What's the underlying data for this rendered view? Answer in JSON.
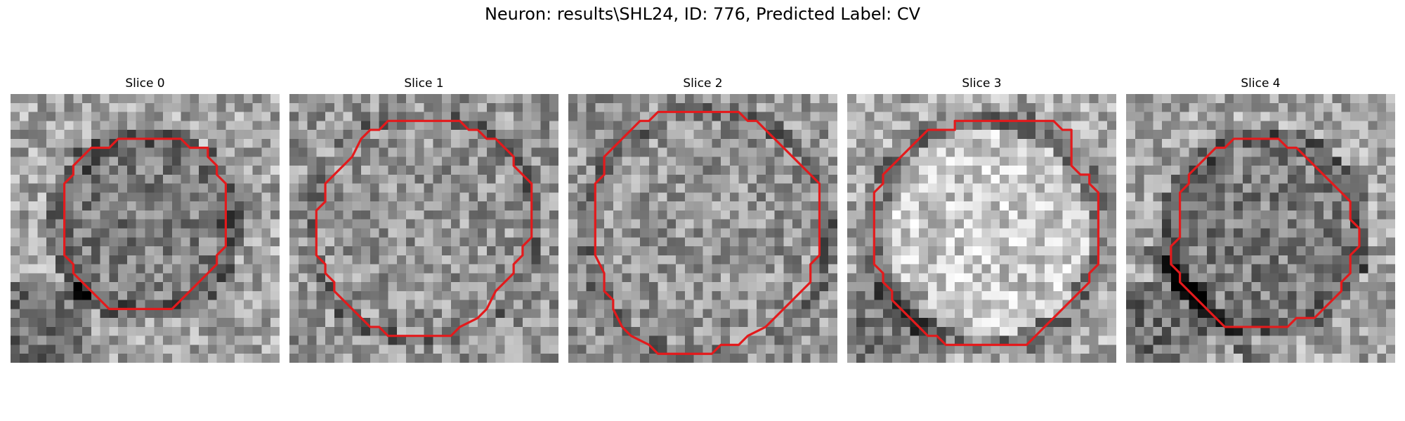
{
  "figure": {
    "title": "Neuron: results\\SHL24, ID: 776, Predicted Label: CV"
  },
  "slices": [
    {
      "title": "Slice 0",
      "seed": 11,
      "inner_tone": "darker",
      "contour_color": "#e31a1c"
    },
    {
      "title": "Slice 1",
      "seed": 23,
      "inner_tone": "mixed",
      "contour_color": "#e31a1c"
    },
    {
      "title": "Slice 2",
      "seed": 37,
      "inner_tone": "mixed",
      "contour_color": "#e31a1c"
    },
    {
      "title": "Slice 3",
      "seed": 41,
      "inner_tone": "lighter",
      "contour_color": "#e31a1c"
    },
    {
      "title": "Slice 4",
      "seed": 53,
      "inner_tone": "darker",
      "contour_color": "#e31a1c"
    }
  ]
}
